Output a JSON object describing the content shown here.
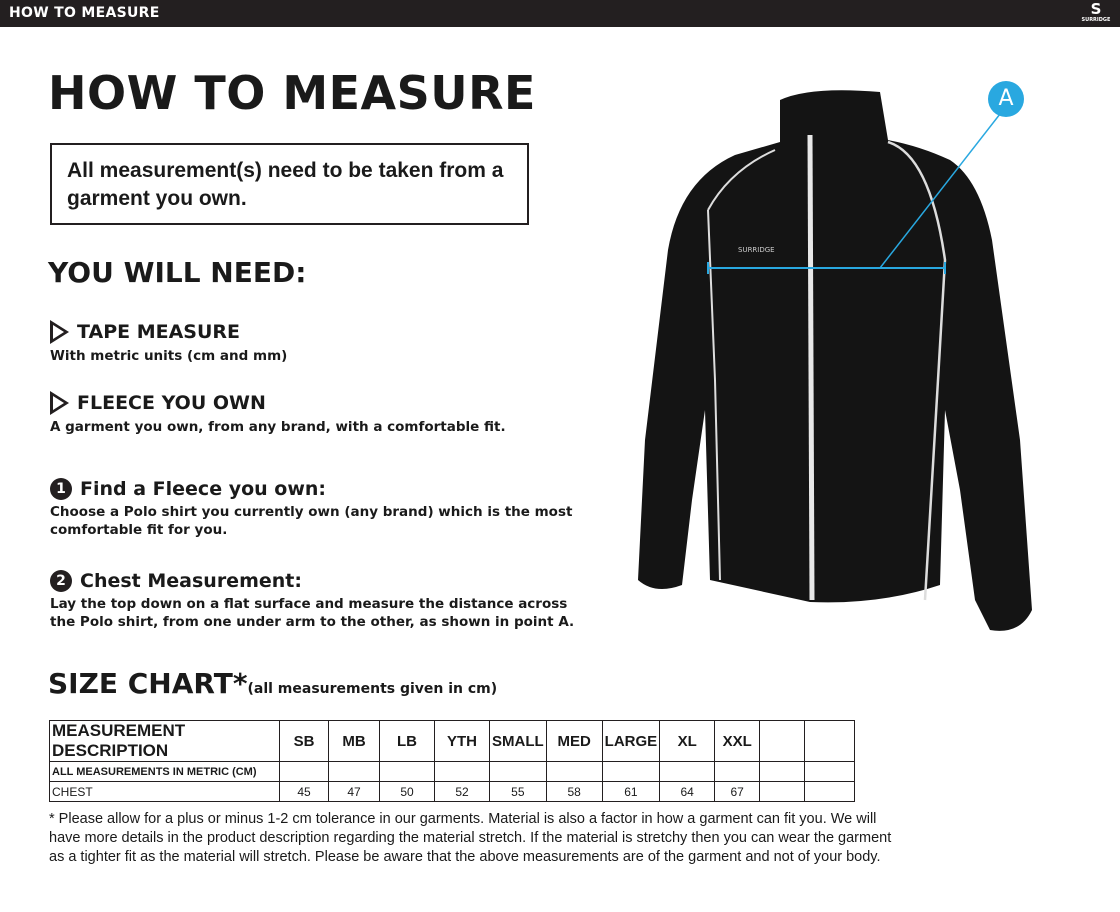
{
  "header": {
    "title": "HOW TO MEASURE",
    "brand": "SURRIDGE"
  },
  "page_title": "HOW TO MEASURE",
  "note": "All measurement(s) need to be taken from a garment you own.",
  "you_will_need": {
    "title": "YOU WILL NEED:",
    "items": [
      {
        "title": "TAPE MEASURE",
        "desc": "With metric units (cm and mm)"
      },
      {
        "title": "FLEECE YOU OWN",
        "desc": "A garment you own, from any brand, with a comfortable fit."
      }
    ]
  },
  "steps": [
    {
      "num": "1",
      "title": "Find a Fleece you own:",
      "desc": "Choose a Polo shirt you currently own (any brand) which is the most comfortable fit for you."
    },
    {
      "num": "2",
      "title": "Chest Measurement:",
      "desc": "Lay the top down on a flat surface and measure the distance across the Polo shirt, from one under arm to the other, as shown in point A."
    }
  ],
  "marker": "A",
  "accent": "#29a8e0",
  "size_chart": {
    "title": "SIZE CHART*",
    "subtitle": "(all measurements given in cm)",
    "headers": [
      "MEASUREMENT DESCRIPTION",
      "SB",
      "MB",
      "LB",
      "YTH",
      "SMALL",
      "MED",
      "LARGE",
      "XL",
      "XXL",
      "",
      ""
    ],
    "subheader": "ALL MEASUREMENTS IN METRIC (CM)",
    "rows": [
      {
        "label": "CHEST",
        "values": [
          "45",
          "47",
          "50",
          "52",
          "55",
          "58",
          "61",
          "64",
          "67",
          "",
          ""
        ]
      }
    ]
  },
  "footnote": "* Please allow for a plus or minus 1-2 cm tolerance in our garments. Material is also a factor in how a garment can fit you. We will have more details in the product description regarding the material stretch.  If the material is stretchy then you can wear the garment as a tighter fit as the material will stretch.  Please be aware that the above measurements are of the garment and not of your body."
}
